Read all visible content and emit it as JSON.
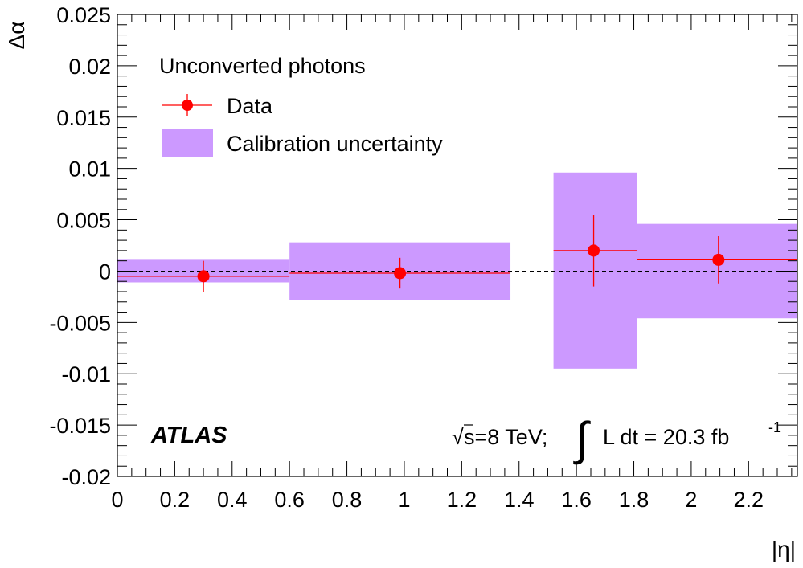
{
  "chart_data": {
    "type": "scatter",
    "xlabel": "|η|",
    "ylabel": "Δα",
    "xlim": [
      0,
      2.37
    ],
    "ylim": [
      -0.02,
      0.025
    ],
    "xticks": [
      0,
      0.2,
      0.4,
      0.6,
      0.8,
      1,
      1.2,
      1.4,
      1.6,
      1.8,
      2,
      2.2
    ],
    "xtick_labels": [
      "0",
      "0.2",
      "0.4",
      "0.6",
      "0.8",
      "1",
      "1.2",
      "1.4",
      "1.6",
      "1.8",
      "2",
      "2.2"
    ],
    "yticks": [
      -0.02,
      -0.015,
      -0.01,
      -0.005,
      0,
      0.005,
      0.01,
      0.015,
      0.02,
      0.025
    ],
    "ytick_labels": [
      "-0.02",
      "-0.015",
      "-0.01",
      "-0.005",
      "0",
      "0.005",
      "0.01",
      "0.015",
      "0.02",
      "0.025"
    ],
    "reference_line": 0,
    "series": [
      {
        "name": "Data",
        "color": "#ff0000",
        "points": [
          {
            "x": 0.3,
            "x_lo": 0.0,
            "x_hi": 0.6,
            "y": -0.0005,
            "y_err": 0.0015
          },
          {
            "x": 0.985,
            "x_lo": 0.6,
            "x_hi": 1.37,
            "y": -0.0002,
            "y_err": 0.0015
          },
          {
            "x": 1.66,
            "x_lo": 1.52,
            "x_hi": 1.81,
            "y": 0.002,
            "y_err": 0.0035
          },
          {
            "x": 2.095,
            "x_lo": 1.81,
            "x_hi": 2.37,
            "y": 0.0011,
            "y_err": 0.0023
          }
        ]
      },
      {
        "name": "Calibration uncertainty",
        "color": "#cc99ff",
        "bands": [
          {
            "x_lo": 0.0,
            "x_hi": 0.6,
            "y_lo": -0.0011,
            "y_hi": 0.0011
          },
          {
            "x_lo": 0.6,
            "x_hi": 1.37,
            "y_lo": -0.0028,
            "y_hi": 0.0028
          },
          {
            "x_lo": 1.52,
            "x_hi": 1.81,
            "y_lo": -0.0095,
            "y_hi": 0.0096
          },
          {
            "x_lo": 1.81,
            "x_hi": 2.37,
            "y_lo": -0.0046,
            "y_hi": 0.0046
          }
        ]
      }
    ],
    "legend": {
      "header": "Unconverted photons",
      "entries": [
        "Data",
        "Calibration uncertainty"
      ],
      "placement": "top-left"
    },
    "annotations": {
      "experiment": "ATLAS",
      "sqrt": "√",
      "energy_text": "s=8 TeV;",
      "integral": "∫",
      "lumi_text": "L dt = 20.3 fb",
      "lumi_exp": "-1"
    }
  }
}
